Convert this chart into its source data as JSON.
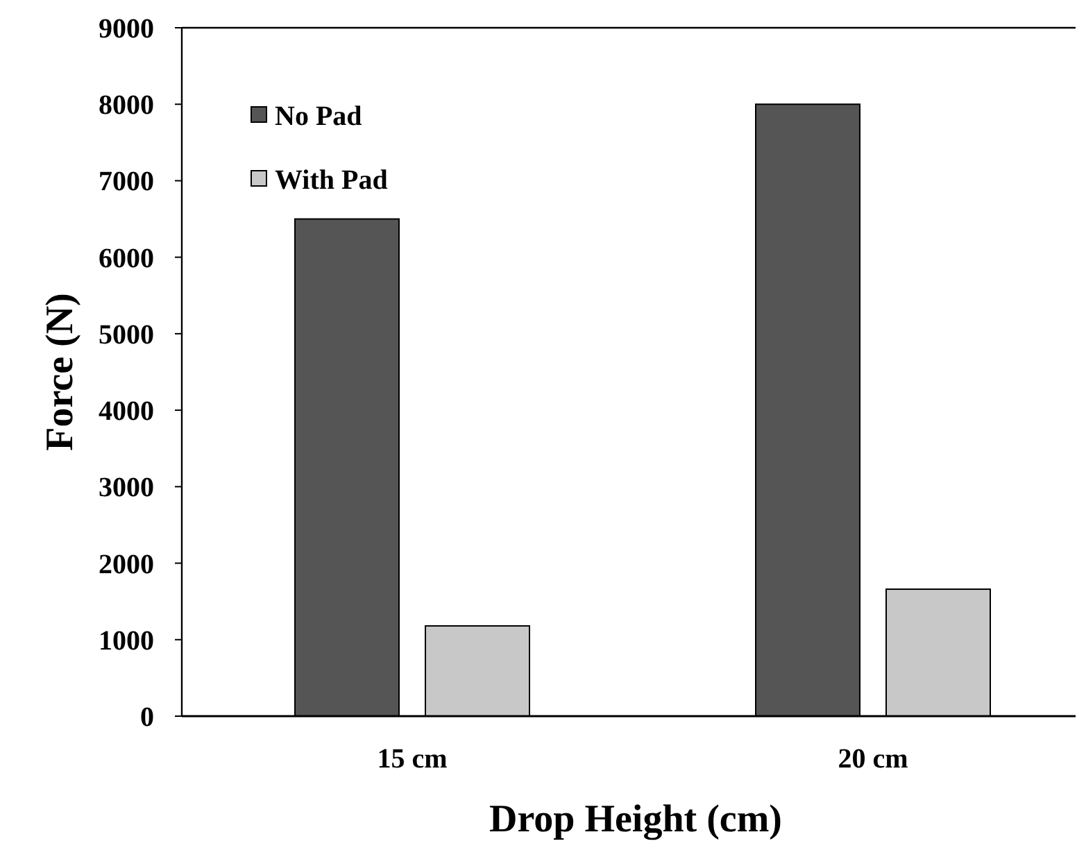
{
  "chart_data": {
    "type": "bar",
    "xlabel": "Drop Height (cm)",
    "ylabel": "Force (N)",
    "categories": [
      "15 cm",
      "20 cm"
    ],
    "series": [
      {
        "name": "No Pad",
        "color": "#555555",
        "values": [
          6500,
          8000
        ]
      },
      {
        "name": "With Pad",
        "color": "#c8c8c8",
        "values": [
          1180,
          1660
        ]
      }
    ],
    "ylim": [
      0,
      9000
    ],
    "yticks": [
      0,
      1000,
      2000,
      3000,
      4000,
      5000,
      6000,
      7000,
      8000,
      9000
    ],
    "grid": false,
    "legend": "top left"
  }
}
